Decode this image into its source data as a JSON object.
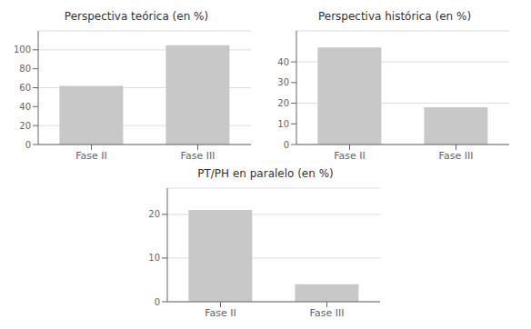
{
  "chart_data": [
    {
      "type": "bar",
      "title": "Perspectiva teórica (en %)",
      "categories": [
        "Fase II",
        "Fase III"
      ],
      "values": [
        62,
        105
      ],
      "color": "#c8c8c8",
      "ylim": [
        0,
        120
      ],
      "yticks": [
        0,
        20,
        40,
        60,
        80,
        100
      ],
      "grid": true
    },
    {
      "type": "bar",
      "title": "Perspectiva histórica (en %)",
      "categories": [
        "Fase II",
        "Fase III"
      ],
      "values": [
        47,
        18
      ],
      "color": "#c8c8c8",
      "ylim": [
        0,
        55
      ],
      "yticks": [
        0,
        10,
        20,
        30,
        40
      ],
      "grid": true
    },
    {
      "type": "bar",
      "title": "PT/PH en paralelo (en %)",
      "categories": [
        "Fase II",
        "Fase III"
      ],
      "values": [
        21,
        4
      ],
      "color": "#c8c8c8",
      "ylim": [
        0,
        26
      ],
      "yticks": [
        0,
        10,
        20
      ],
      "grid": true
    }
  ]
}
